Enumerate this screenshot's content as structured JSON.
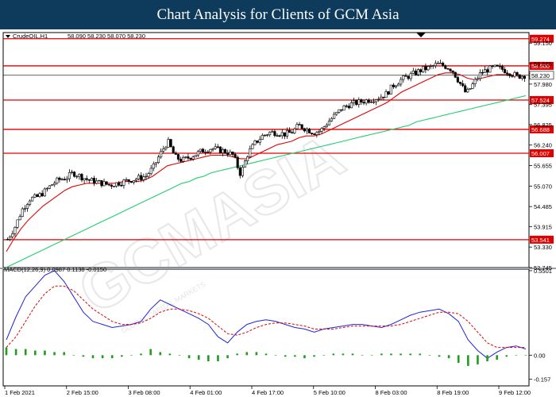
{
  "banner_title": "Chart Analysis for Clients of GCM Asia",
  "watermark": "GCMASIA",
  "watermark_small": "GLOBAL CAPITAL MARKETS",
  "chart_data": [
    {
      "type": "candlestick",
      "title": "",
      "symbol_label": "CrudeOIL,H1",
      "ohlc_readout": "58.090 58.230 58.070 58.230",
      "current_price": 58.23,
      "ylim": [
        52.745,
        59.45
      ],
      "y_ticks": [
        "59.150",
        "58.565",
        "57.980",
        "57.395",
        "56.825",
        "56.240",
        "55.655",
        "55.070",
        "54.485",
        "53.915",
        "53.330",
        "52.745"
      ],
      "x_ticks": [
        "1 Feb 2021",
        "2 Feb 15:00",
        "3 Feb 08:00",
        "4 Feb 01:00",
        "4 Feb 17:00",
        "5 Feb 10:00",
        "8 Feb 03:00",
        "8 Feb 19:00",
        "9 Feb 12:00"
      ],
      "horizontal_levels": [
        {
          "label": "59.274",
          "value": 59.274
        },
        {
          "label": "58.500",
          "value": 58.5
        },
        {
          "label": "57.524",
          "value": 57.524
        },
        {
          "label": "56.688",
          "value": 56.688
        },
        {
          "label": "56.007",
          "value": 56.007
        },
        {
          "label": "53.541",
          "value": 53.541
        }
      ],
      "price_path": [
        53.55,
        53.9,
        54.4,
        54.7,
        54.75,
        54.9,
        55.1,
        55.25,
        55.3,
        55.45,
        55.35,
        55.25,
        55.2,
        55.15,
        55.1,
        55.15,
        55.2,
        55.25,
        55.3,
        55.35,
        55.6,
        56.0,
        56.35,
        55.9,
        55.8,
        55.9,
        56.0,
        56.1,
        56.15,
        56.1,
        56.05,
        55.95,
        55.4,
        56.0,
        56.3,
        56.5,
        56.6,
        56.6,
        56.55,
        56.6,
        56.8,
        56.7,
        56.6,
        56.65,
        56.9,
        57.1,
        57.3,
        57.4,
        57.45,
        57.5,
        57.55,
        57.6,
        57.7,
        57.95,
        58.1,
        58.2,
        58.3,
        58.4,
        58.45,
        58.55,
        58.5,
        58.4,
        58.05,
        57.7,
        58.0,
        58.3,
        58.4,
        58.45,
        58.4,
        58.3,
        58.2,
        58.23
      ],
      "series": [
        {
          "name": "",
          "color": "#e00000",
          "values": [
            53.2,
            53.55,
            53.85,
            54.1,
            54.3,
            54.5,
            54.65,
            54.8,
            54.95,
            55.05,
            55.1,
            55.15,
            55.15,
            55.15,
            55.15,
            55.15,
            55.2,
            55.2,
            55.2,
            55.25,
            55.35,
            55.5,
            55.65,
            55.7,
            55.75,
            55.8,
            55.85,
            55.9,
            55.95,
            55.95,
            55.95,
            55.9,
            55.85,
            55.85,
            55.95,
            56.05,
            56.15,
            56.25,
            56.3,
            56.35,
            56.45,
            56.5,
            56.5,
            56.55,
            56.65,
            56.75,
            56.85,
            56.95,
            57.05,
            57.15,
            57.25,
            57.35,
            57.45,
            57.6,
            57.75,
            57.85,
            57.95,
            58.05,
            58.15,
            58.25,
            58.3,
            58.3,
            58.25,
            58.15,
            58.1,
            58.15,
            58.2,
            58.25,
            58.25,
            58.25,
            58.2,
            58.2
          ]
        },
        {
          "name": "",
          "color": "#1fcf6f",
          "values": [
            52.75,
            52.85,
            52.95,
            53.05,
            53.15,
            53.25,
            53.35,
            53.45,
            53.55,
            53.65,
            53.75,
            53.85,
            53.95,
            54.05,
            54.15,
            54.25,
            54.35,
            54.45,
            54.55,
            54.65,
            54.75,
            54.85,
            54.95,
            55.05,
            55.15,
            55.2,
            55.3,
            55.35,
            55.45,
            55.5,
            55.55,
            55.6,
            55.65,
            55.7,
            55.75,
            55.8,
            55.85,
            55.9,
            55.95,
            56.0,
            56.05,
            56.1,
            56.15,
            56.2,
            56.25,
            56.3,
            56.35,
            56.4,
            56.45,
            56.5,
            56.55,
            56.6,
            56.65,
            56.7,
            56.75,
            56.8,
            56.9,
            56.95,
            57.0,
            57.05,
            57.1,
            57.15,
            57.2,
            57.25,
            57.3,
            57.35,
            57.4,
            57.45,
            57.5,
            57.55,
            57.6,
            57.65
          ]
        }
      ]
    },
    {
      "type": "macd",
      "title": "",
      "label": "MACD(12,26,9) 0.0987 0.1138 -0.0150",
      "ylim": [
        -0.2,
        0.56
      ],
      "y_ticks": [
        "0.5501",
        "0.00",
        "-0.157"
      ],
      "series": [
        {
          "name": "",
          "color": "#2222dd",
          "style": "solid",
          "values": [
            0.1,
            0.25,
            0.38,
            0.45,
            0.52,
            0.55,
            0.48,
            0.38,
            0.28,
            0.22,
            0.2,
            0.18,
            0.19,
            0.2,
            0.22,
            0.3,
            0.36,
            0.33,
            0.3,
            0.27,
            0.24,
            0.2,
            0.12,
            0.08,
            0.15,
            0.2,
            0.22,
            0.23,
            0.22,
            0.2,
            0.18,
            0.17,
            0.15,
            0.17,
            0.18,
            0.19,
            0.2,
            0.2,
            0.19,
            0.18,
            0.2,
            0.23,
            0.26,
            0.28,
            0.29,
            0.3,
            0.27,
            0.22,
            0.1,
            0.03,
            -0.02,
            0.02,
            0.05,
            0.06,
            0.04
          ]
        },
        {
          "name": "",
          "color": "#e00000",
          "style": "dashed",
          "values": [
            0.05,
            0.12,
            0.22,
            0.32,
            0.4,
            0.45,
            0.45,
            0.42,
            0.36,
            0.3,
            0.26,
            0.22,
            0.2,
            0.2,
            0.21,
            0.24,
            0.28,
            0.3,
            0.3,
            0.29,
            0.27,
            0.24,
            0.19,
            0.14,
            0.13,
            0.15,
            0.18,
            0.2,
            0.21,
            0.21,
            0.2,
            0.19,
            0.17,
            0.17,
            0.17,
            0.18,
            0.19,
            0.19,
            0.19,
            0.19,
            0.19,
            0.2,
            0.22,
            0.24,
            0.26,
            0.28,
            0.28,
            0.27,
            0.22,
            0.15,
            0.08,
            0.05,
            0.05,
            0.05,
            0.05
          ]
        },
        {
          "name": "",
          "color": "#1e9e1e",
          "style": "histogram",
          "values": [
            0.05,
            0.04,
            0.04,
            0.03,
            0.03,
            0.02,
            0.02,
            0.0,
            -0.01,
            -0.02,
            -0.02,
            -0.02,
            -0.01,
            0.0,
            0.01,
            0.04,
            0.02,
            0.01,
            0.0,
            -0.02,
            -0.03,
            -0.04,
            -0.04,
            -0.02,
            0.01,
            0.02,
            0.02,
            0.01,
            0.0,
            -0.01,
            -0.01,
            -0.02,
            -0.01,
            0.0,
            0.01,
            0.01,
            0.01,
            0.0,
            0.0,
            0.01,
            0.01,
            0.01,
            0.01,
            0.01,
            0.0,
            -0.01,
            -0.02,
            -0.05,
            -0.07,
            -0.06,
            -0.04,
            -0.03,
            -0.01,
            0.0,
            0.0
          ]
        }
      ]
    }
  ]
}
